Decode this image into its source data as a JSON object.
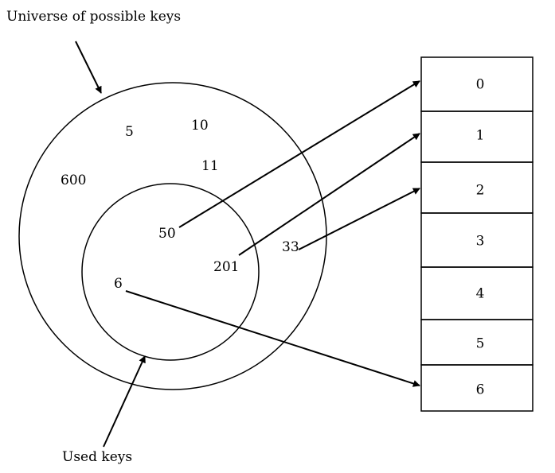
{
  "labels": {
    "universe": "Universe of possible keys",
    "used": "Used keys"
  },
  "keys": {
    "k5": "5",
    "k10": "10",
    "k11": "11",
    "k600": "600",
    "k50": "50",
    "k201": "201",
    "k33": "33",
    "k6": "6"
  },
  "table": {
    "slots": [
      "0",
      "1",
      "2",
      "3",
      "4",
      "5",
      "6"
    ]
  },
  "mappings": [
    {
      "key": "50",
      "slot": "0"
    },
    {
      "key": "201",
      "slot": "1"
    },
    {
      "key": "33",
      "slot": "2"
    },
    {
      "key": "6",
      "slot": "6"
    }
  ]
}
